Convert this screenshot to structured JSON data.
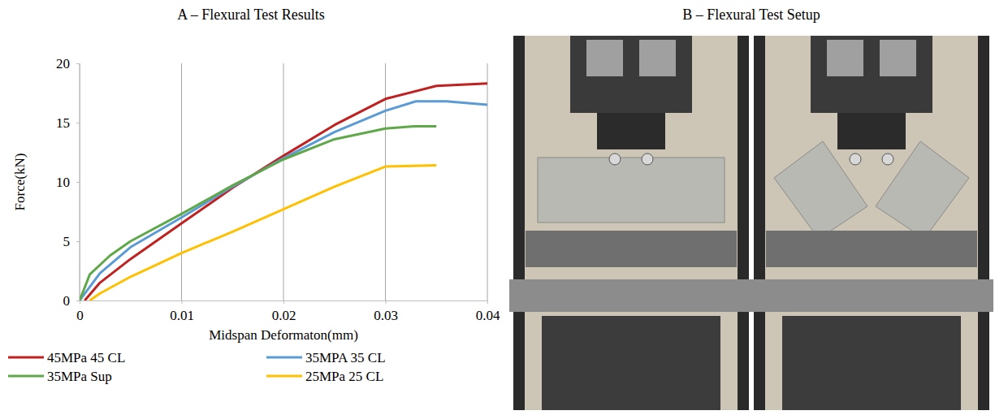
{
  "chart_data": {
    "type": "line",
    "title": "A – Flexural Test Results",
    "x_label": "Midspan Deformaton(mm)",
    "y_label": "Force(kN)",
    "xlim": [
      0,
      0.04
    ],
    "xticks": [
      0,
      0.01,
      0.02,
      0.03,
      0.04
    ],
    "ylim": [
      0,
      20
    ],
    "yticks": [
      0,
      5,
      10,
      15,
      20
    ],
    "grid": "x",
    "legend": "bottom",
    "series": [
      {
        "name": "45MPa 45 CL",
        "color": "#c0201f",
        "x": [
          0.0005,
          0.002,
          0.005,
          0.01,
          0.015,
          0.02,
          0.025,
          0.03,
          0.035,
          0.04
        ],
        "values": [
          0,
          1.5,
          3.5,
          6.5,
          9.5,
          12.2,
          14.8,
          17,
          18.1,
          18.3
        ]
      },
      {
        "name": "35MPA 35 CL",
        "color": "#5b9bd5",
        "x": [
          0,
          0.002,
          0.005,
          0.01,
          0.015,
          0.02,
          0.025,
          0.03,
          0.033,
          0.036,
          0.04
        ],
        "values": [
          0,
          2.3,
          4.5,
          7,
          9.6,
          12,
          14.2,
          16,
          16.8,
          16.8,
          16.5
        ]
      },
      {
        "name": "35MPa Sup",
        "color": "#5fa84a",
        "x": [
          0,
          0.001,
          0.003,
          0.005,
          0.01,
          0.015,
          0.02,
          0.025,
          0.03,
          0.033,
          0.035
        ],
        "values": [
          0,
          2.2,
          3.8,
          5,
          7.3,
          9.7,
          11.9,
          13.6,
          14.5,
          14.7,
          14.7
        ]
      },
      {
        "name": "25MPa 25 CL",
        "color": "#ffc000",
        "x": [
          0.001,
          0.002,
          0.005,
          0.01,
          0.015,
          0.02,
          0.025,
          0.03,
          0.035
        ],
        "values": [
          0,
          0.6,
          2,
          4,
          5.8,
          7.7,
          9.6,
          11.3,
          11.4
        ]
      }
    ]
  },
  "photo_panel": {
    "title": "B – Flexural Test Setup"
  }
}
